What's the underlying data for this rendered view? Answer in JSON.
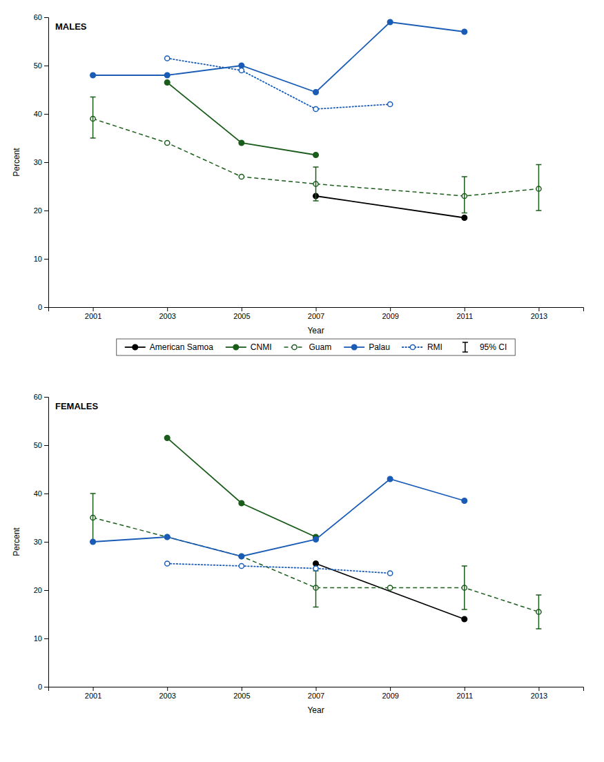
{
  "chart_data": [
    {
      "type": "line",
      "title": "MALES",
      "x_label": "Year",
      "y_label": "Percent",
      "xlim": [
        1999.8,
        2014.2
      ],
      "xticks": [
        2001,
        2003,
        2005,
        2007,
        2009,
        2011,
        2013
      ],
      "ylim": [
        0,
        60
      ],
      "yticks": [
        0,
        10,
        20,
        30,
        40,
        50,
        60
      ],
      "grid": false,
      "legend": "bottom",
      "ci_label": "95% CI",
      "series": [
        {
          "name": "American Samoa",
          "color": "#000000",
          "line_style": "solid",
          "marker": "circle",
          "x": [
            2007,
            2011
          ],
          "values": [
            23,
            18.5
          ]
        },
        {
          "name": "CNMI",
          "color": "#1a5c1a",
          "line_style": "solid",
          "marker": "circle",
          "x": [
            2003,
            2005,
            2007
          ],
          "values": [
            46.5,
            34,
            31.5
          ]
        },
        {
          "name": "Guam",
          "color": "#1a5c1a",
          "line_style": "dashed",
          "marker": "open-circle",
          "x": [
            2001,
            2003,
            2005,
            2007,
            2011,
            2013
          ],
          "values": [
            39,
            34,
            27,
            25.5,
            23,
            24.5
          ],
          "ci_low": [
            35,
            null,
            null,
            22,
            19.5,
            20
          ],
          "ci_high": [
            43.5,
            null,
            null,
            29,
            27,
            29.5
          ]
        },
        {
          "name": "Palau",
          "color": "#1a5cb5",
          "line_style": "solid",
          "marker": "circle",
          "x": [
            2001,
            2003,
            2005,
            2007,
            2009,
            2011
          ],
          "values": [
            48,
            48,
            50,
            44.5,
            59,
            57
          ]
        },
        {
          "name": "RMI",
          "color": "#1a5cb5",
          "line_style": "dotted",
          "marker": "open-circle",
          "x": [
            2003,
            2005,
            2007,
            2009
          ],
          "values": [
            51.5,
            49,
            41,
            42
          ]
        }
      ]
    },
    {
      "type": "line",
      "title": "FEMALES",
      "x_label": "Year",
      "y_label": "Percent",
      "xlim": [
        1999.8,
        2014.2
      ],
      "xticks": [
        2001,
        2003,
        2005,
        2007,
        2009,
        2011,
        2013
      ],
      "ylim": [
        0,
        60
      ],
      "yticks": [
        0,
        10,
        20,
        30,
        40,
        50,
        60
      ],
      "grid": false,
      "series": [
        {
          "name": "American Samoa",
          "color": "#000000",
          "line_style": "solid",
          "marker": "circle",
          "x": [
            2007,
            2011
          ],
          "values": [
            25.5,
            14
          ]
        },
        {
          "name": "CNMI",
          "color": "#1a5c1a",
          "line_style": "solid",
          "marker": "circle",
          "x": [
            2003,
            2005,
            2007
          ],
          "values": [
            51.5,
            38,
            31
          ]
        },
        {
          "name": "Guam",
          "color": "#1a5c1a",
          "line_style": "dashed",
          "marker": "open-circle",
          "x": [
            2001,
            2003,
            2005,
            2007,
            2009,
            2011,
            2013
          ],
          "values": [
            35,
            31,
            27,
            20.5,
            20.5,
            20.5,
            15.5
          ],
          "ci_low": [
            30,
            null,
            null,
            16.5,
            null,
            16,
            12
          ],
          "ci_high": [
            40,
            null,
            null,
            24,
            null,
            25,
            19
          ]
        },
        {
          "name": "Palau",
          "color": "#1a5cb5",
          "line_style": "solid",
          "marker": "circle",
          "x": [
            2001,
            2003,
            2005,
            2007,
            2009,
            2011
          ],
          "values": [
            30,
            31,
            27,
            30.5,
            43,
            38.5
          ]
        },
        {
          "name": "RMI",
          "color": "#1a5cb5",
          "line_style": "dotted",
          "marker": "open-circle",
          "x": [
            2003,
            2005,
            2007,
            2009
          ],
          "values": [
            25.5,
            25,
            24.5,
            23.5
          ]
        }
      ]
    }
  ]
}
